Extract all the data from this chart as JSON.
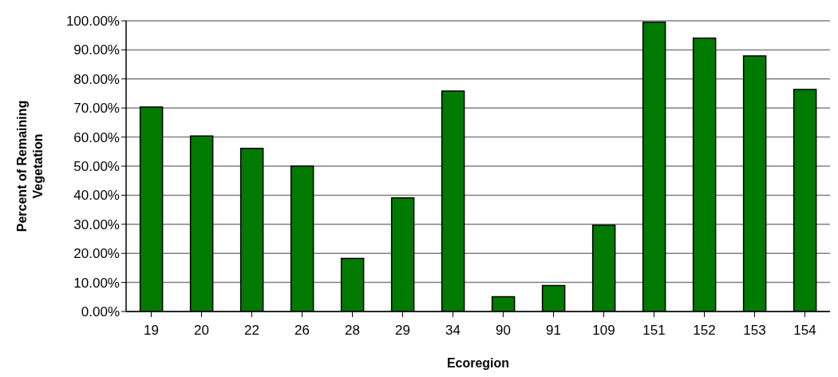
{
  "chart_data": {
    "type": "bar",
    "xlabel": "Ecoregion",
    "ylabel": "Percent of Remaining Vegetation",
    "categories": [
      "19",
      "20",
      "22",
      "26",
      "28",
      "29",
      "34",
      "90",
      "91",
      "109",
      "151",
      "152",
      "153",
      "154"
    ],
    "values": [
      70.3,
      60.4,
      56.1,
      50.0,
      18.3,
      39.1,
      75.8,
      5.1,
      8.9,
      29.7,
      99.5,
      94.0,
      87.9,
      76.4
    ],
    "color": "#007a00",
    "ylim": [
      0,
      100
    ],
    "yticks": [
      {
        "value": 0,
        "label": "0.00%"
      },
      {
        "value": 10,
        "label": "10.00%"
      },
      {
        "value": 20,
        "label": "20.00%"
      },
      {
        "value": 30,
        "label": "30.00%"
      },
      {
        "value": 40,
        "label": "40.00%"
      },
      {
        "value": 50,
        "label": "50.00%"
      },
      {
        "value": 60,
        "label": "60.00%"
      },
      {
        "value": 70,
        "label": "70.00%"
      },
      {
        "value": 80,
        "label": "80.00%"
      },
      {
        "value": 90,
        "label": "90.00%"
      },
      {
        "value": 100,
        "label": "100.00%"
      }
    ],
    "grid": "y",
    "legend": false
  }
}
